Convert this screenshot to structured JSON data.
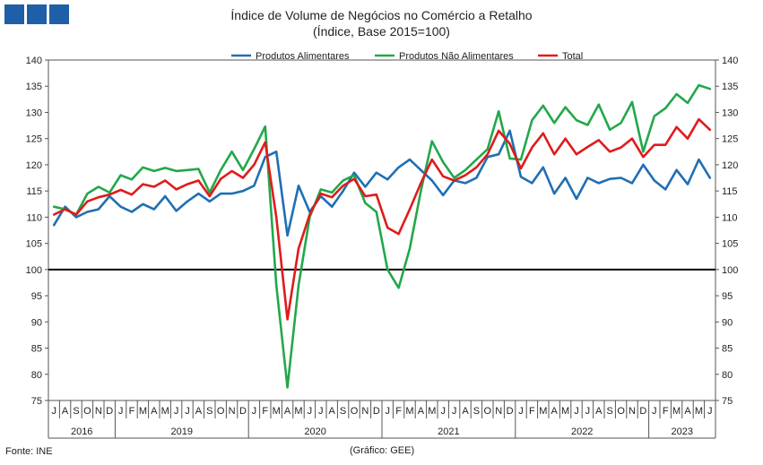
{
  "logo": {
    "icon": "three-blue-squares-logo",
    "color": "#1f5fa8"
  },
  "footer": {
    "source": "Fonte: INE",
    "graphic": "(Gráfico: GEE)"
  },
  "chart_data": {
    "type": "line",
    "title": "Índice de Volume de Negócios no Comércio a Retalho",
    "subtitle": "(Índice, Base 2015=100)",
    "xlabel": "",
    "ylabel": "",
    "ylim": [
      75,
      140
    ],
    "yticks": [
      75,
      80,
      85,
      90,
      95,
      100,
      105,
      110,
      115,
      120,
      125,
      130,
      135,
      140
    ],
    "grid": false,
    "legend_position": "top",
    "reference_line": {
      "y": 100,
      "color": "#000000"
    },
    "categories": [
      "J",
      "A",
      "S",
      "O",
      "N",
      "D",
      "J",
      "F",
      "M",
      "A",
      "M",
      "J",
      "J",
      "A",
      "S",
      "O",
      "N",
      "D",
      "J",
      "F",
      "M",
      "A",
      "M",
      "J",
      "J",
      "A",
      "S",
      "O",
      "N",
      "D",
      "J",
      "F",
      "M",
      "A",
      "M",
      "J",
      "J",
      "A",
      "S",
      "O",
      "N",
      "D",
      "J",
      "F",
      "M",
      "A",
      "M",
      "J",
      "J",
      "A",
      "S",
      "O",
      "N",
      "D",
      "J",
      "F",
      "M",
      "A",
      "M",
      "J"
    ],
    "years": [
      {
        "label": "2016",
        "start": 0,
        "end": 6
      },
      {
        "label": "2019",
        "start": 6,
        "end": 18
      },
      {
        "label": "2020",
        "start": 18,
        "end": 30
      },
      {
        "label": "2021",
        "start": 30,
        "end": 42
      },
      {
        "label": "2022",
        "start": 42,
        "end": 54
      },
      {
        "label": "2023",
        "start": 54,
        "end": 60
      }
    ],
    "series": [
      {
        "name": "Produtos Alimentares",
        "color": "#1f6fb4",
        "values": [
          108.5,
          112.0,
          110.0,
          111.0,
          111.5,
          114.0,
          112.0,
          111.0,
          112.5,
          111.5,
          114.0,
          111.2,
          113.0,
          114.5,
          113.0,
          114.5,
          114.5,
          115.0,
          116.0,
          121.5,
          122.5,
          106.5,
          116.0,
          111.0,
          114.0,
          112.0,
          115.0,
          118.5,
          115.8,
          118.5,
          117.2,
          119.5,
          121.0,
          119.0,
          117.0,
          114.2,
          117.0,
          116.5,
          117.5,
          121.5,
          122.0,
          126.5,
          117.7,
          116.5,
          119.5,
          114.5,
          117.5,
          113.5,
          117.5,
          116.5,
          117.3,
          117.5,
          116.5,
          120.0,
          117.0,
          115.3,
          119.0,
          116.3,
          121.0,
          117.5
        ]
      },
      {
        "name": "Produtos Não Alimentares",
        "color": "#22a84a",
        "values": [
          112.0,
          111.5,
          110.5,
          114.5,
          115.8,
          114.7,
          118.0,
          117.2,
          119.5,
          118.8,
          119.4,
          118.8,
          119.0,
          119.2,
          114.7,
          119.0,
          122.5,
          119.0,
          123.0,
          127.3,
          97.0,
          77.5,
          97.0,
          110.0,
          115.3,
          114.7,
          117.0,
          118.0,
          112.7,
          111.0,
          100.0,
          96.5,
          104.0,
          115.0,
          124.5,
          120.5,
          117.5,
          119.0,
          121.0,
          123.0,
          130.2,
          121.2,
          121.0,
          128.5,
          131.3,
          128.0,
          131.0,
          128.5,
          127.6,
          131.5,
          126.7,
          128.0,
          132.0,
          122.5,
          129.3,
          130.8,
          133.5,
          131.8,
          135.2,
          134.5
        ]
      },
      {
        "name": "Total",
        "color": "#e01b1b",
        "values": [
          110.5,
          111.5,
          110.5,
          113.0,
          113.8,
          114.3,
          115.2,
          114.3,
          116.3,
          115.8,
          117.0,
          115.3,
          116.3,
          117.0,
          114.0,
          117.3,
          118.8,
          117.5,
          120.0,
          124.3,
          110.0,
          90.5,
          104.0,
          110.5,
          114.5,
          113.8,
          116.0,
          117.3,
          114.0,
          114.3,
          108.0,
          106.8,
          111.5,
          116.5,
          121.0,
          117.8,
          117.0,
          118.0,
          119.5,
          122.0,
          126.5,
          124.0,
          119.3,
          123.3,
          126.0,
          122.0,
          125.0,
          122.0,
          123.4,
          124.7,
          122.5,
          123.3,
          125.0,
          121.5,
          123.8,
          123.8,
          127.2,
          125.0,
          128.7,
          126.7
        ]
      }
    ]
  }
}
